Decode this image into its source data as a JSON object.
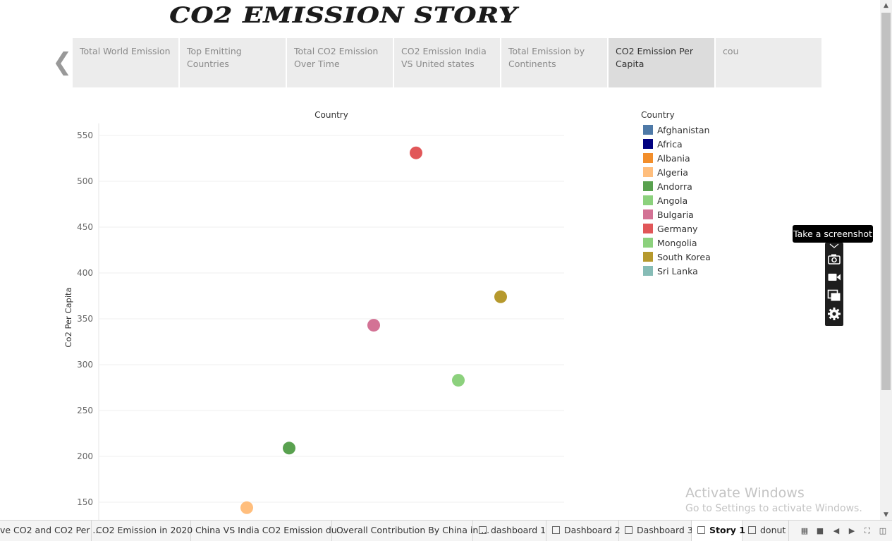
{
  "story": {
    "title": "CO2 EMISSION STORY",
    "tabs": [
      {
        "label": "Total World Emission"
      },
      {
        "label": "Top Emitting Countries"
      },
      {
        "label": "Total CO2 Emission Over Time"
      },
      {
        "label": "CO2 Emission India VS United states"
      },
      {
        "label": "Total Emission by Continents"
      },
      {
        "label": "CO2 Emission Per Capita",
        "active": true
      },
      {
        "label": "cou"
      }
    ]
  },
  "chart_data": {
    "type": "scatter",
    "title": "Country",
    "xlabel": "",
    "ylabel": "Co2 Per Capita",
    "ylim": [
      135,
      562
    ],
    "yticks": [
      150,
      200,
      250,
      300,
      350,
      400,
      450,
      500,
      550
    ],
    "grid": true,
    "legend_position": "right",
    "points": [
      {
        "country": "Algeria",
        "x": 1,
        "y": 144,
        "color": "#ffbe7d"
      },
      {
        "country": "Andorra",
        "x": 2,
        "y": 209,
        "color": "#59a14f"
      },
      {
        "country": "Bulgaria",
        "x": 4,
        "y": 343,
        "color": "#d37295"
      },
      {
        "country": "Germany",
        "x": 5,
        "y": 531,
        "color": "#e15759"
      },
      {
        "country": "Mongolia",
        "x": 6,
        "y": 283,
        "color": "#8cd17d"
      },
      {
        "country": "South Korea",
        "x": 7,
        "y": 374,
        "color": "#b6992d"
      }
    ]
  },
  "legend": {
    "title": "Country",
    "items": [
      {
        "name": "Afghanistan",
        "color": "#4e79a7"
      },
      {
        "name": "Africa",
        "color": "#000080"
      },
      {
        "name": "Albania",
        "color": "#f28e2b"
      },
      {
        "name": "Algeria",
        "color": "#ffbe7d"
      },
      {
        "name": "Andorra",
        "color": "#59a14f"
      },
      {
        "name": "Angola",
        "color": "#8cd17d"
      },
      {
        "name": "Bulgaria",
        "color": "#d37295"
      },
      {
        "name": "Germany",
        "color": "#e15759"
      },
      {
        "name": "Mongolia",
        "color": "#8cd17d"
      },
      {
        "name": "South Korea",
        "color": "#b6992d"
      },
      {
        "name": "Sri Lanka",
        "color": "#86bcb6"
      }
    ]
  },
  "capture_toolbar": {
    "tooltip": "Take a screenshot",
    "icons": [
      "camera-icon",
      "video-icon",
      "copy-icon",
      "gear-icon"
    ]
  },
  "watermark": {
    "line1": "Activate Windows",
    "line2": "Go to Settings to activate Windows."
  },
  "sheet_tabs": [
    {
      "label": "ve CO2 and CO2 Per ...",
      "icon": ""
    },
    {
      "label": "CO2 Emission in 2020",
      "icon": ""
    },
    {
      "label": "China VS India CO2 Emission du...",
      "icon": ""
    },
    {
      "label": "Overall Contribution By China in ...",
      "icon": ""
    },
    {
      "label": "dashboard 1",
      "icon": "dashboard-icon"
    },
    {
      "label": "Dashboard 2",
      "icon": "dashboard-icon"
    },
    {
      "label": "Dashboard 3",
      "icon": "dashboard-icon"
    },
    {
      "label": "Story 1",
      "icon": "story-icon",
      "active": true
    },
    {
      "label": "donut",
      "icon": "dashboard-icon"
    }
  ]
}
